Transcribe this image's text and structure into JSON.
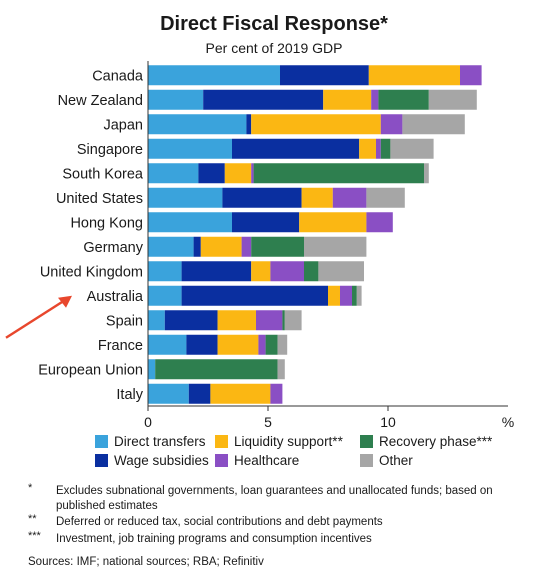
{
  "title": "Direct Fiscal Response*",
  "subtitle": "Per cent of 2019 GDP",
  "colors": {
    "direct_transfers": "#3aa3dc",
    "wage_subsidies": "#0a2fa0",
    "liquidity_support": "#fbb713",
    "healthcare": "#8a4fc4",
    "recovery_phase": "#2e7f4f",
    "other": "#a6a6a6",
    "arrow": "#e8472d"
  },
  "legend": [
    {
      "label": "Direct transfers",
      "color": "#3aa3dc"
    },
    {
      "label": "Liquidity support**",
      "color": "#fbb713"
    },
    {
      "label": "Recovery phase***",
      "color": "#2e7f4f"
    },
    {
      "label": "Wage subsidies",
      "color": "#0a2fa0"
    },
    {
      "label": "Healthcare",
      "color": "#8a4fc4"
    },
    {
      "label": "Other",
      "color": "#a6a6a6"
    }
  ],
  "notes": [
    {
      "mark": "*",
      "text": "Excludes subnational governments, loan guarantees and unallocated funds; based on published estimates"
    },
    {
      "mark": "**",
      "text": "Deferred or reduced tax, social contributions and debt payments"
    },
    {
      "mark": "***",
      "text": "Investment, job training programs and consumption incentives"
    }
  ],
  "sources": "Sources: IMF; national sources; RBA; Refinitiv",
  "chart_data": {
    "type": "bar",
    "orientation": "horizontal",
    "stacked": true,
    "title": "Direct Fiscal Response*",
    "subtitle": "Per cent of 2019 GDP",
    "xlabel": "",
    "x_unit": "%",
    "ylabel": "",
    "xlim": [
      0,
      15
    ],
    "xticks": [
      0,
      5,
      10
    ],
    "grid": false,
    "legend_position": "bottom",
    "highlight": "Australia",
    "categories": [
      "Canada",
      "New Zealand",
      "Japan",
      "Singapore",
      "South Korea",
      "United States",
      "Hong Kong",
      "Germany",
      "United Kingdom",
      "Australia",
      "Spain",
      "France",
      "European Union",
      "Italy"
    ],
    "series": [
      {
        "key": "direct_transfers",
        "name": "Direct transfers",
        "values": [
          5.5,
          2.3,
          4.1,
          3.5,
          2.1,
          3.1,
          3.5,
          1.9,
          1.4,
          1.4,
          0.7,
          1.6,
          0.3,
          1.7
        ]
      },
      {
        "key": "wage_subsidies",
        "name": "Wage subsidies",
        "values": [
          3.7,
          5.0,
          0.2,
          5.3,
          1.1,
          3.3,
          2.8,
          0.3,
          2.9,
          6.1,
          2.2,
          1.3,
          0,
          0.9
        ]
      },
      {
        "key": "liquidity_support",
        "name": "Liquidity support**",
        "values": [
          3.8,
          2.0,
          5.4,
          0.7,
          1.1,
          1.3,
          2.8,
          1.7,
          0.8,
          0.5,
          1.6,
          1.7,
          0,
          2.5
        ]
      },
      {
        "key": "healthcare",
        "name": "Healthcare",
        "values": [
          0.9,
          0.3,
          0.9,
          0.2,
          0.1,
          1.4,
          1.1,
          0.4,
          1.4,
          0.5,
          1.1,
          0.3,
          0,
          0.5
        ]
      },
      {
        "key": "recovery_phase",
        "name": "Recovery phase***",
        "values": [
          0,
          2.1,
          0,
          0.4,
          7.1,
          0,
          0,
          2.2,
          0.6,
          0.2,
          0.1,
          0.5,
          5.1,
          0
        ]
      },
      {
        "key": "other",
        "name": "Other",
        "values": [
          0,
          2.0,
          2.6,
          1.8,
          0.2,
          1.6,
          0,
          2.6,
          1.9,
          0.2,
          0.7,
          0.4,
          0.3,
          0
        ]
      }
    ]
  }
}
